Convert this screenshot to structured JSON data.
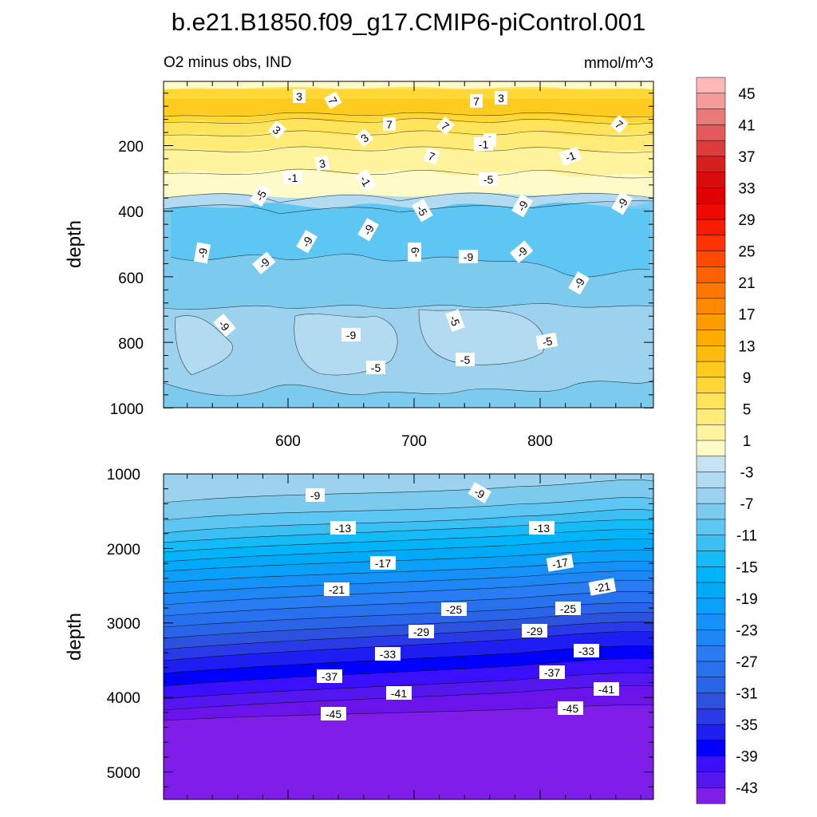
{
  "chart_data": {
    "type": "contour",
    "title": "b.e21.B1850.f09_g17.CMIP6-piControl.001",
    "subtitle_left": "O2 minus obs, IND",
    "subtitle_right": "mmol/m^3",
    "colorbar": {
      "levels": [
        -45,
        -43,
        -41,
        -39,
        -37,
        -35,
        -33,
        -31,
        -29,
        -27,
        -25,
        -23,
        -21,
        -19,
        -17,
        -15,
        -13,
        -11,
        -9,
        -7,
        -5,
        -3,
        -1,
        1,
        3,
        5,
        7,
        9,
        11,
        13,
        15,
        17,
        19,
        21,
        23,
        25,
        27,
        29,
        31,
        33,
        35,
        37,
        39,
        41,
        43,
        45
      ],
      "tick_labels": [
        "45",
        "41",
        "37",
        "33",
        "29",
        "25",
        "21",
        "17",
        "13",
        "9",
        "5",
        "1",
        "-3",
        "-7",
        "-11",
        "-15",
        "-19",
        "-23",
        "-27",
        "-31",
        "-35",
        "-39",
        "-43"
      ],
      "colors": [
        "#7f1ee8",
        "#5418ee",
        "#3a0ffb",
        "#0000ff",
        "#1e1ef3",
        "#2a3ae6",
        "#2d52de",
        "#2a64e8",
        "#2771ee",
        "#2a7cf3",
        "#1e87f5",
        "#1592fa",
        "#0a9ff9",
        "#00aaf8",
        "#00b4fa",
        "#14bbf7",
        "#3cc0f3",
        "#5ec6f2",
        "#7ccbef",
        "#9dd2ee",
        "#b2daf1",
        "#c6e3f3",
        "#fffbc8",
        "#fff39e",
        "#ffec78",
        "#ffe35a",
        "#ffd838",
        "#ffcb1e",
        "#ffbc0e",
        "#ffac00",
        "#ff9b00",
        "#ff8900",
        "#ff7600",
        "#ff6100",
        "#ff4a00",
        "#ff3300",
        "#f71c00",
        "#ee0a00",
        "#e00000",
        "#d80c0c",
        "#d62020",
        "#dc3c3c",
        "#e35a5a",
        "#ea7a7a",
        "#f49c9c",
        "#ffb8b8"
      ]
    },
    "panels": [
      {
        "name": "upper",
        "ylabel": "depth",
        "ylim": [
          5,
          1000
        ],
        "yticks": [
          "200",
          "400",
          "600",
          "800",
          "1000"
        ],
        "xlim": [
          500,
          895
        ],
        "xticks": [
          "600",
          "700",
          "800"
        ],
        "contour_labels": [
          "3",
          "7",
          "7",
          "3",
          "3",
          "7",
          "7",
          "3",
          "7",
          "3",
          "3",
          "7",
          "-1",
          "-1",
          "-1",
          "-1",
          "-5",
          "-5",
          "-5",
          "-9",
          "-9",
          "-9",
          "-9",
          "-9",
          "-9",
          "-9",
          "-9",
          "-9",
          "-9",
          "-9",
          "-9",
          "-5",
          "-5",
          "-5",
          "-5",
          "-5",
          "-5"
        ]
      },
      {
        "name": "lower",
        "ylabel": "depth",
        "ylim": [
          1000,
          5500
        ],
        "yticks": [
          "1000",
          "2000",
          "3000",
          "4000",
          "5000"
        ],
        "contour_labels": [
          "-9",
          "-9",
          "-13",
          "-13",
          "-17",
          "-17",
          "-21",
          "-21",
          "-25",
          "-25",
          "-29",
          "-29",
          "-33",
          "-33",
          "-37",
          "-37",
          "-41",
          "-41",
          "-45",
          "-45"
        ]
      }
    ]
  }
}
